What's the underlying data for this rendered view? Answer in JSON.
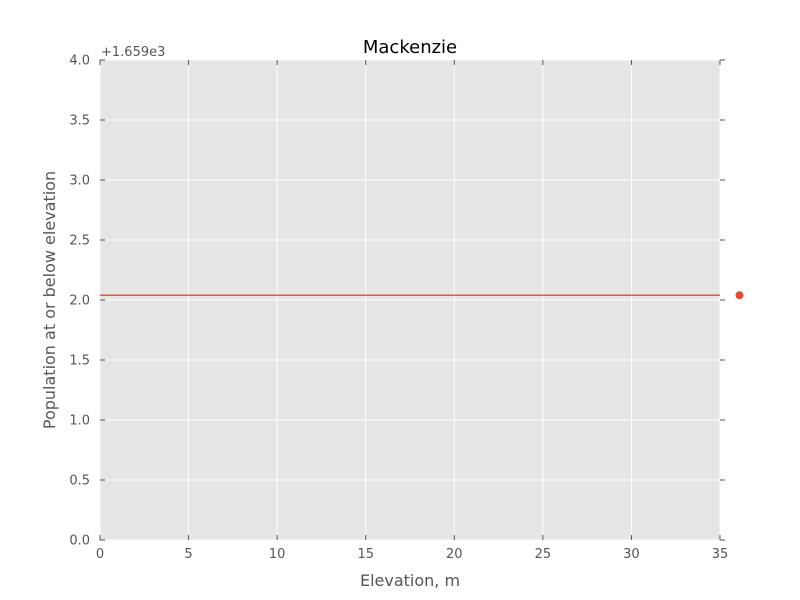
{
  "chart_data": {
    "type": "line",
    "title": "Mackenzie",
    "xlabel": "Elevation, m",
    "ylabel": "Population at or below elevation",
    "y_offset_label": "+1.659e3",
    "xlim": [
      0,
      35
    ],
    "ylim": [
      0.0,
      4.0
    ],
    "x_ticks": [
      0,
      5,
      10,
      15,
      20,
      25,
      30,
      35
    ],
    "x_tick_labels": [
      "0",
      "5",
      "10",
      "15",
      "20",
      "25",
      "30",
      "35"
    ],
    "y_ticks": [
      0.0,
      0.5,
      1.0,
      1.5,
      2.0,
      2.5,
      3.0,
      3.5,
      4.0
    ],
    "y_tick_labels": [
      "0.0",
      "0.5",
      "1.0",
      "1.5",
      "2.0",
      "2.5",
      "3.0",
      "3.5",
      "4.0"
    ],
    "grid": true,
    "series": [
      {
        "kind": "line",
        "color": "#e24a33",
        "x": [
          0,
          35
        ],
        "y": [
          2.04,
          2.04
        ]
      },
      {
        "kind": "scatter",
        "color": "#e24a33",
        "x": [
          36.1
        ],
        "y": [
          2.04
        ]
      }
    ],
    "colors": {
      "plot_background": "#e5e5e5",
      "grid": "#ffffff",
      "series": "#e24a33"
    }
  }
}
